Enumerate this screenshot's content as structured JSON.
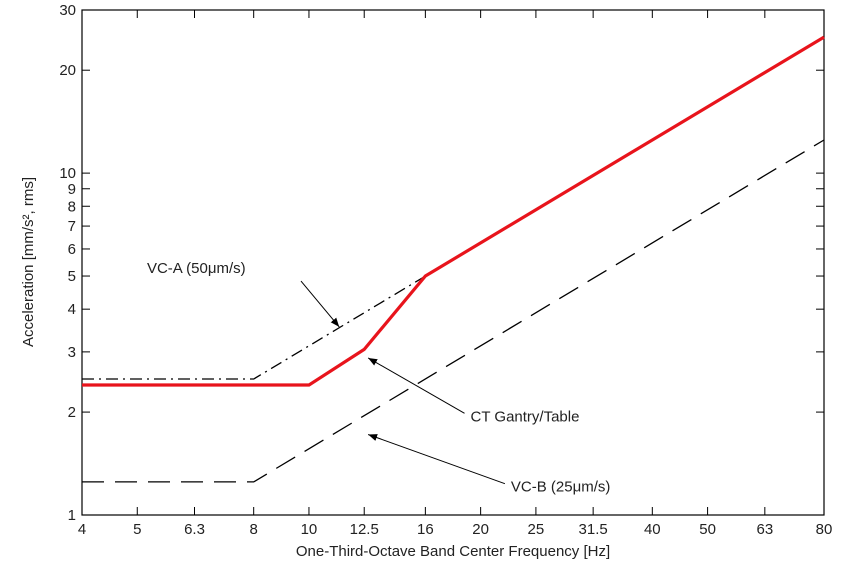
{
  "chart_data": {
    "type": "line",
    "xlabel": "One-Third-Octave Band Center Frequency [Hz]",
    "ylabel": "Acceleration [mm/s², rms]",
    "x_scale": "log",
    "y_scale": "log",
    "xlim": [
      4,
      80
    ],
    "ylim": [
      1,
      30
    ],
    "grid": false,
    "legend": "none",
    "x_ticks": [
      "4",
      "5",
      "6.3",
      "8",
      "10",
      "12.5",
      "16",
      "20",
      "25",
      "31.5",
      "40",
      "50",
      "63",
      "80"
    ],
    "y_ticks": [
      "1",
      "2",
      "3",
      "4",
      "5",
      "6",
      "7",
      "8",
      "9",
      "10",
      "20",
      "30"
    ],
    "series": [
      {
        "name": "VC-A (50μm/s)",
        "style": "dash-dot",
        "color": "#000000",
        "x": [
          4,
          8,
          80
        ],
        "y": [
          2.5,
          2.5,
          25
        ]
      },
      {
        "name": "VC-B (25μm/s)",
        "style": "dashed",
        "color": "#000000",
        "x": [
          4,
          8,
          80
        ],
        "y": [
          1.25,
          1.25,
          12.5
        ]
      },
      {
        "name": "CT Gantry/Table",
        "style": "solid",
        "color": "#e8141c",
        "x": [
          4,
          10,
          12.5,
          16,
          80
        ],
        "y": [
          2.4,
          2.4,
          3.05,
          5.0,
          25
        ]
      }
    ],
    "annotations": [
      {
        "label": "VC-A (50μm/s)",
        "series": 0,
        "text_x": 5.2,
        "text_y": 5.1,
        "arrow_x": 11.3,
        "arrow_y": 3.55
      },
      {
        "label": "CT Gantry/Table",
        "series": 2,
        "text_x": 19.2,
        "text_y": 1.88,
        "arrow_x": 12.7,
        "arrow_y": 2.88
      },
      {
        "label": "VC-B (25μm/s)",
        "series": 1,
        "text_x": 22.6,
        "text_y": 1.17,
        "arrow_x": 12.7,
        "arrow_y": 1.72
      }
    ]
  }
}
